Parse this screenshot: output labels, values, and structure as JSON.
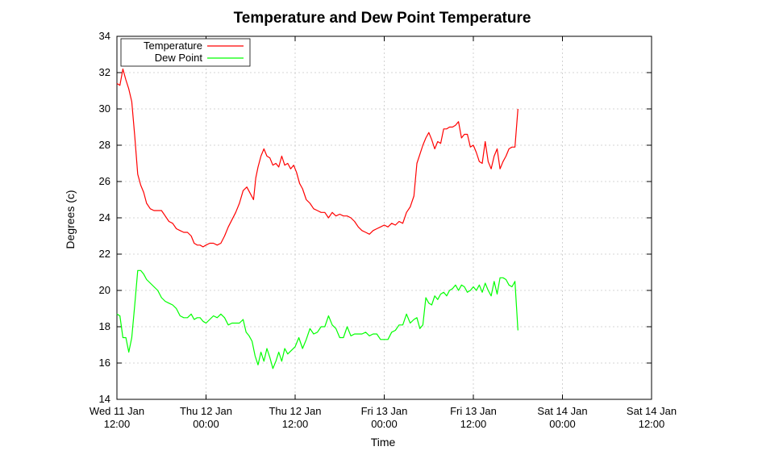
{
  "chart_data": {
    "type": "line",
    "title": "Temperature and Dew Point Temperature",
    "xlabel": "Time",
    "ylabel": "Degrees (c)",
    "ylim": [
      14,
      34
    ],
    "y_ticks": [
      "14",
      "16",
      "18",
      "20",
      "22",
      "24",
      "26",
      "28",
      "30",
      "32",
      "34"
    ],
    "xlim_hours": [
      0,
      72
    ],
    "x_ticks": [
      {
        "line1": "Wed 11 Jan",
        "line2": "12:00",
        "hour": 0
      },
      {
        "line1": "Thu 12 Jan",
        "line2": "00:00",
        "hour": 12
      },
      {
        "line1": "Thu 12 Jan",
        "line2": "12:00",
        "hour": 24
      },
      {
        "line1": "Fri 13 Jan",
        "line2": "00:00",
        "hour": 36
      },
      {
        "line1": "Fri 13 Jan",
        "line2": "12:00",
        "hour": 48
      },
      {
        "line1": "Sat 14 Jan",
        "line2": "00:00",
        "hour": 60
      },
      {
        "line1": "Sat 14 Jan",
        "line2": "12:00",
        "hour": 72
      }
    ],
    "grid": true,
    "legend_position": "top-left",
    "series": [
      {
        "name": "Temperature",
        "color": "#ff0000",
        "points": [
          [
            0.0,
            31.4
          ],
          [
            0.4,
            31.3
          ],
          [
            0.8,
            32.2
          ],
          [
            1.2,
            31.6
          ],
          [
            1.6,
            31.1
          ],
          [
            2.0,
            30.4
          ],
          [
            2.4,
            28.5
          ],
          [
            2.8,
            26.4
          ],
          [
            3.2,
            25.8
          ],
          [
            3.6,
            25.4
          ],
          [
            4.0,
            24.8
          ],
          [
            4.5,
            24.5
          ],
          [
            5.0,
            24.4
          ],
          [
            5.5,
            24.4
          ],
          [
            6.0,
            24.4
          ],
          [
            6.5,
            24.1
          ],
          [
            7.0,
            23.8
          ],
          [
            7.5,
            23.7
          ],
          [
            8.0,
            23.4
          ],
          [
            8.5,
            23.3
          ],
          [
            9.0,
            23.2
          ],
          [
            9.5,
            23.2
          ],
          [
            10.0,
            23.0
          ],
          [
            10.4,
            22.6
          ],
          [
            10.8,
            22.5
          ],
          [
            11.2,
            22.5
          ],
          [
            11.6,
            22.4
          ],
          [
            12.0,
            22.5
          ],
          [
            12.5,
            22.6
          ],
          [
            13.0,
            22.6
          ],
          [
            13.5,
            22.5
          ],
          [
            14.0,
            22.6
          ],
          [
            14.5,
            23.0
          ],
          [
            15.0,
            23.5
          ],
          [
            15.5,
            23.9
          ],
          [
            16.0,
            24.3
          ],
          [
            16.5,
            24.8
          ],
          [
            17.0,
            25.5
          ],
          [
            17.5,
            25.7
          ],
          [
            18.0,
            25.3
          ],
          [
            18.4,
            25.0
          ],
          [
            18.7,
            26.2
          ],
          [
            19.0,
            26.8
          ],
          [
            19.4,
            27.4
          ],
          [
            19.8,
            27.8
          ],
          [
            20.2,
            27.4
          ],
          [
            20.6,
            27.3
          ],
          [
            21.0,
            26.9
          ],
          [
            21.4,
            27.0
          ],
          [
            21.8,
            26.8
          ],
          [
            22.2,
            27.4
          ],
          [
            22.6,
            26.9
          ],
          [
            23.0,
            27.0
          ],
          [
            23.4,
            26.7
          ],
          [
            23.8,
            26.9
          ],
          [
            24.2,
            26.5
          ],
          [
            24.6,
            25.9
          ],
          [
            25.0,
            25.6
          ],
          [
            25.5,
            25.0
          ],
          [
            26.0,
            24.8
          ],
          [
            26.5,
            24.5
          ],
          [
            27.0,
            24.4
          ],
          [
            27.5,
            24.3
          ],
          [
            28.0,
            24.3
          ],
          [
            28.5,
            24.0
          ],
          [
            29.0,
            24.3
          ],
          [
            29.5,
            24.1
          ],
          [
            30.0,
            24.2
          ],
          [
            30.5,
            24.1
          ],
          [
            31.0,
            24.1
          ],
          [
            31.5,
            24.0
          ],
          [
            32.0,
            23.8
          ],
          [
            32.5,
            23.5
          ],
          [
            33.0,
            23.3
          ],
          [
            33.5,
            23.2
          ],
          [
            34.0,
            23.1
          ],
          [
            34.5,
            23.3
          ],
          [
            35.0,
            23.4
          ],
          [
            35.5,
            23.5
          ],
          [
            36.0,
            23.6
          ],
          [
            36.5,
            23.5
          ],
          [
            37.0,
            23.7
          ],
          [
            37.5,
            23.6
          ],
          [
            38.0,
            23.8
          ],
          [
            38.5,
            23.7
          ],
          [
            39.0,
            24.3
          ],
          [
            39.5,
            24.6
          ],
          [
            40.0,
            25.2
          ],
          [
            40.4,
            27.0
          ],
          [
            40.8,
            27.5
          ],
          [
            41.2,
            28.0
          ],
          [
            41.6,
            28.4
          ],
          [
            42.0,
            28.7
          ],
          [
            42.4,
            28.3
          ],
          [
            42.8,
            27.8
          ],
          [
            43.2,
            28.2
          ],
          [
            43.6,
            28.1
          ],
          [
            44.0,
            28.9
          ],
          [
            44.4,
            28.9
          ],
          [
            44.8,
            29.0
          ],
          [
            45.2,
            29.0
          ],
          [
            45.6,
            29.1
          ],
          [
            46.0,
            29.3
          ],
          [
            46.4,
            28.4
          ],
          [
            46.8,
            28.6
          ],
          [
            47.2,
            28.6
          ],
          [
            47.6,
            27.9
          ],
          [
            48.0,
            28.0
          ],
          [
            48.4,
            27.6
          ],
          [
            48.8,
            27.1
          ],
          [
            49.2,
            27.0
          ],
          [
            49.6,
            28.2
          ],
          [
            50.0,
            27.1
          ],
          [
            50.4,
            26.7
          ],
          [
            50.8,
            27.4
          ],
          [
            51.2,
            27.8
          ],
          [
            51.6,
            26.7
          ],
          [
            52.0,
            27.1
          ],
          [
            52.4,
            27.4
          ],
          [
            52.8,
            27.8
          ],
          [
            53.2,
            27.9
          ],
          [
            53.6,
            27.9
          ],
          [
            54.0,
            30.0
          ]
        ]
      },
      {
        "name": "Dew Point",
        "color": "#00ff00",
        "points": [
          [
            0.0,
            18.7
          ],
          [
            0.4,
            18.6
          ],
          [
            0.8,
            17.4
          ],
          [
            1.2,
            17.4
          ],
          [
            1.6,
            16.6
          ],
          [
            2.0,
            17.4
          ],
          [
            2.4,
            19.2
          ],
          [
            2.8,
            21.1
          ],
          [
            3.2,
            21.1
          ],
          [
            3.6,
            20.9
          ],
          [
            4.0,
            20.6
          ],
          [
            4.5,
            20.4
          ],
          [
            5.0,
            20.2
          ],
          [
            5.5,
            20.0
          ],
          [
            6.0,
            19.6
          ],
          [
            6.5,
            19.4
          ],
          [
            7.0,
            19.3
          ],
          [
            7.5,
            19.2
          ],
          [
            8.0,
            19.0
          ],
          [
            8.5,
            18.6
          ],
          [
            9.0,
            18.5
          ],
          [
            9.5,
            18.5
          ],
          [
            10.0,
            18.7
          ],
          [
            10.4,
            18.4
          ],
          [
            10.8,
            18.5
          ],
          [
            11.2,
            18.5
          ],
          [
            11.6,
            18.3
          ],
          [
            12.0,
            18.2
          ],
          [
            12.5,
            18.4
          ],
          [
            13.0,
            18.6
          ],
          [
            13.5,
            18.5
          ],
          [
            14.0,
            18.7
          ],
          [
            14.5,
            18.5
          ],
          [
            15.0,
            18.1
          ],
          [
            15.5,
            18.2
          ],
          [
            16.0,
            18.2
          ],
          [
            16.5,
            18.2
          ],
          [
            17.0,
            18.4
          ],
          [
            17.4,
            17.7
          ],
          [
            17.8,
            17.5
          ],
          [
            18.2,
            17.2
          ],
          [
            18.6,
            16.4
          ],
          [
            19.0,
            15.9
          ],
          [
            19.4,
            16.6
          ],
          [
            19.8,
            16.1
          ],
          [
            20.2,
            16.8
          ],
          [
            20.6,
            16.3
          ],
          [
            21.0,
            15.7
          ],
          [
            21.4,
            16.1
          ],
          [
            21.8,
            16.6
          ],
          [
            22.2,
            16.1
          ],
          [
            22.6,
            16.8
          ],
          [
            23.0,
            16.5
          ],
          [
            23.5,
            16.7
          ],
          [
            24.0,
            16.9
          ],
          [
            24.5,
            17.4
          ],
          [
            25.0,
            16.8
          ],
          [
            25.5,
            17.3
          ],
          [
            26.0,
            17.9
          ],
          [
            26.5,
            17.6
          ],
          [
            27.0,
            17.7
          ],
          [
            27.5,
            18.0
          ],
          [
            28.0,
            18.0
          ],
          [
            28.5,
            18.6
          ],
          [
            29.0,
            18.1
          ],
          [
            29.5,
            17.9
          ],
          [
            30.0,
            17.4
          ],
          [
            30.5,
            17.4
          ],
          [
            31.0,
            18.0
          ],
          [
            31.5,
            17.5
          ],
          [
            32.0,
            17.6
          ],
          [
            32.5,
            17.6
          ],
          [
            33.0,
            17.6
          ],
          [
            33.5,
            17.7
          ],
          [
            34.0,
            17.5
          ],
          [
            34.5,
            17.6
          ],
          [
            35.0,
            17.6
          ],
          [
            35.5,
            17.3
          ],
          [
            36.0,
            17.3
          ],
          [
            36.5,
            17.3
          ],
          [
            37.0,
            17.7
          ],
          [
            37.5,
            17.8
          ],
          [
            38.0,
            18.1
          ],
          [
            38.5,
            18.1
          ],
          [
            39.0,
            18.7
          ],
          [
            39.5,
            18.2
          ],
          [
            40.0,
            18.4
          ],
          [
            40.4,
            18.5
          ],
          [
            40.8,
            17.9
          ],
          [
            41.2,
            18.1
          ],
          [
            41.6,
            19.6
          ],
          [
            42.0,
            19.3
          ],
          [
            42.4,
            19.2
          ],
          [
            42.8,
            19.7
          ],
          [
            43.2,
            19.5
          ],
          [
            43.6,
            19.8
          ],
          [
            44.0,
            19.9
          ],
          [
            44.4,
            19.7
          ],
          [
            44.8,
            20.0
          ],
          [
            45.2,
            20.1
          ],
          [
            45.6,
            20.3
          ],
          [
            46.0,
            20.0
          ],
          [
            46.4,
            20.3
          ],
          [
            46.8,
            20.2
          ],
          [
            47.2,
            19.9
          ],
          [
            47.6,
            20.0
          ],
          [
            48.0,
            20.2
          ],
          [
            48.4,
            20.0
          ],
          [
            48.8,
            20.3
          ],
          [
            49.2,
            19.9
          ],
          [
            49.6,
            20.4
          ],
          [
            50.0,
            20.0
          ],
          [
            50.4,
            19.7
          ],
          [
            50.8,
            20.5
          ],
          [
            51.2,
            19.8
          ],
          [
            51.6,
            20.7
          ],
          [
            52.0,
            20.7
          ],
          [
            52.4,
            20.6
          ],
          [
            52.8,
            20.3
          ],
          [
            53.2,
            20.2
          ],
          [
            53.6,
            20.5
          ],
          [
            54.0,
            17.8
          ]
        ]
      }
    ]
  }
}
